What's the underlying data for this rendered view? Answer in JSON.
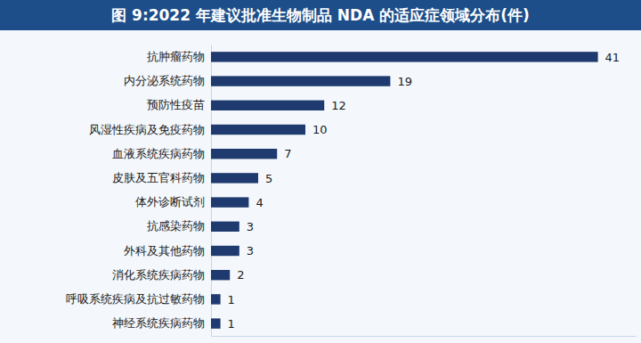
{
  "chart_data": {
    "type": "bar",
    "title": "图 9:2022 年建议批准生物制品 NDA 的适应症领域分布(件)",
    "orientation": "horizontal",
    "categories": [
      "抗肿瘤药物",
      "内分泌系统药物",
      "预防性疫苗",
      "风湿性疾病及免疫药物",
      "血液系统疾病药物",
      "皮肤及五官科药物",
      "体外诊断试剂",
      "抗感染药物",
      "外科及其他药物",
      "消化系统疾病药物",
      "呼吸系统疾病及抗过敏药物",
      "神经系统疾病药物"
    ],
    "values": [
      41,
      19,
      12,
      10,
      7,
      5,
      4,
      3,
      3,
      2,
      1,
      1
    ],
    "color": "#1f3a6e",
    "xlim": [
      0,
      45
    ],
    "data_labels": true,
    "tick_labels": "y",
    "grid": false
  }
}
